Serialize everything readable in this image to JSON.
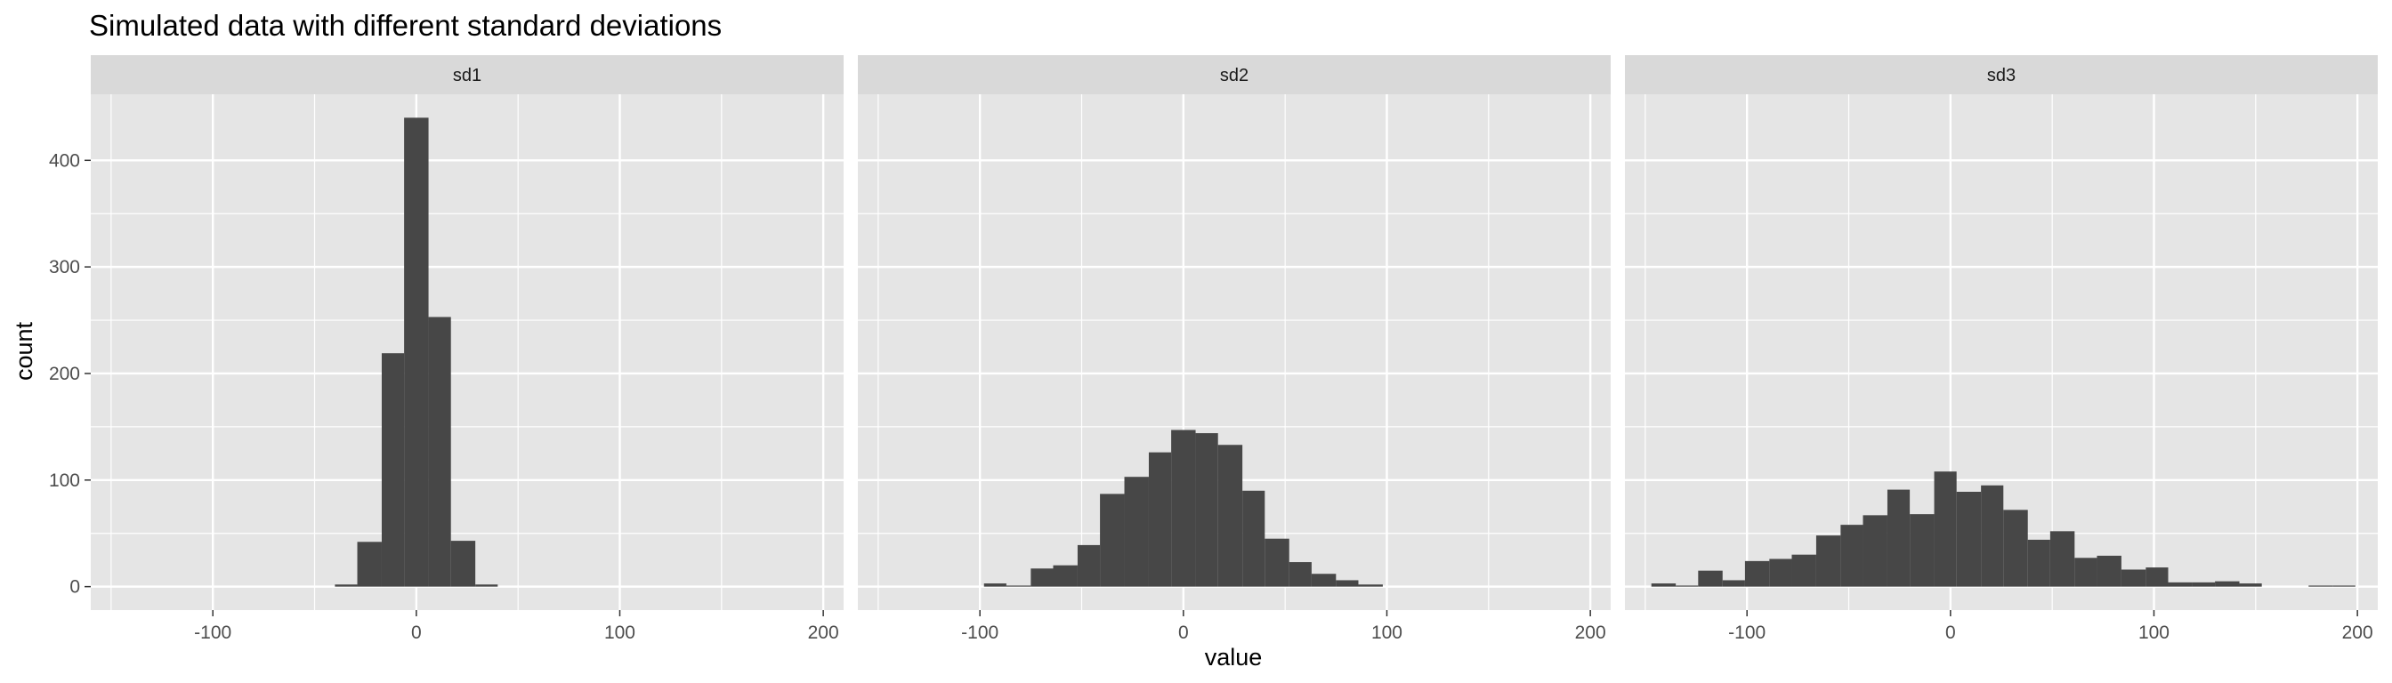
{
  "chart_data": {
    "type": "bar",
    "title": "Simulated data with different standard deviations",
    "xlabel": "value",
    "ylabel": "count",
    "xlim": [
      -160,
      210
    ],
    "ylim": [
      -22,
      462
    ],
    "x_ticks": [
      -100,
      0,
      100,
      200
    ],
    "x_tick_labels": [
      "-100",
      "0",
      "100",
      "200"
    ],
    "y_ticks": [
      0,
      100,
      200,
      300,
      400
    ],
    "y_tick_labels": [
      "0",
      "100",
      "200",
      "300",
      "400"
    ],
    "grid": true,
    "legend": "none",
    "bar_color": "#474747",
    "panel_background": "#e5e5e5",
    "strip_background": "#d9d9d9",
    "grid_color": "#ffffff",
    "panels": [
      {
        "label": "sd1",
        "bins": [
          {
            "x0": -40,
            "x1": -29,
            "count": 2
          },
          {
            "x0": -29,
            "x1": -17,
            "count": 42
          },
          {
            "x0": -17,
            "x1": -6,
            "count": 219
          },
          {
            "x0": -6,
            "x1": 6,
            "count": 440
          },
          {
            "x0": 6,
            "x1": 17,
            "count": 253
          },
          {
            "x0": 17,
            "x1": 29,
            "count": 43
          },
          {
            "x0": 29,
            "x1": 40,
            "count": 2
          }
        ]
      },
      {
        "label": "sd2",
        "bins": [
          {
            "x0": -98,
            "x1": -87,
            "count": 3
          },
          {
            "x0": -87,
            "x1": -75,
            "count": 1
          },
          {
            "x0": -75,
            "x1": -64,
            "count": 17
          },
          {
            "x0": -64,
            "x1": -52,
            "count": 20
          },
          {
            "x0": -52,
            "x1": -41,
            "count": 39
          },
          {
            "x0": -41,
            "x1": -29,
            "count": 87
          },
          {
            "x0": -29,
            "x1": -17,
            "count": 103
          },
          {
            "x0": -17,
            "x1": -6,
            "count": 126
          },
          {
            "x0": -6,
            "x1": 6,
            "count": 147
          },
          {
            "x0": 6,
            "x1": 17,
            "count": 144
          },
          {
            "x0": 17,
            "x1": 29,
            "count": 133
          },
          {
            "x0": 29,
            "x1": 40,
            "count": 90
          },
          {
            "x0": 40,
            "x1": 52,
            "count": 45
          },
          {
            "x0": 52,
            "x1": 63,
            "count": 23
          },
          {
            "x0": 63,
            "x1": 75,
            "count": 12
          },
          {
            "x0": 75,
            "x1": 86,
            "count": 6
          },
          {
            "x0": 86,
            "x1": 98,
            "count": 2
          }
        ]
      },
      {
        "label": "sd3",
        "bins": [
          {
            "x0": -147,
            "x1": -135,
            "count": 3
          },
          {
            "x0": -135,
            "x1": -124,
            "count": 1
          },
          {
            "x0": -124,
            "x1": -112,
            "count": 15
          },
          {
            "x0": -112,
            "x1": -101,
            "count": 6
          },
          {
            "x0": -101,
            "x1": -89,
            "count": 24
          },
          {
            "x0": -89,
            "x1": -78,
            "count": 26
          },
          {
            "x0": -78,
            "x1": -66,
            "count": 30
          },
          {
            "x0": -66,
            "x1": -54,
            "count": 48
          },
          {
            "x0": -54,
            "x1": -43,
            "count": 58
          },
          {
            "x0": -43,
            "x1": -31,
            "count": 67
          },
          {
            "x0": -31,
            "x1": -20,
            "count": 91
          },
          {
            "x0": -20,
            "x1": -8,
            "count": 68
          },
          {
            "x0": -8,
            "x1": 3,
            "count": 108
          },
          {
            "x0": 3,
            "x1": 15,
            "count": 89
          },
          {
            "x0": 15,
            "x1": 26,
            "count": 95
          },
          {
            "x0": 26,
            "x1": 38,
            "count": 72
          },
          {
            "x0": 38,
            "x1": 49,
            "count": 44
          },
          {
            "x0": 49,
            "x1": 61,
            "count": 52
          },
          {
            "x0": 61,
            "x1": 72,
            "count": 27
          },
          {
            "x0": 72,
            "x1": 84,
            "count": 29
          },
          {
            "x0": 84,
            "x1": 96,
            "count": 16
          },
          {
            "x0": 96,
            "x1": 107,
            "count": 18
          },
          {
            "x0": 107,
            "x1": 119,
            "count": 4
          },
          {
            "x0": 119,
            "x1": 130,
            "count": 4
          },
          {
            "x0": 130,
            "x1": 142,
            "count": 5
          },
          {
            "x0": 142,
            "x1": 153,
            "count": 3
          },
          {
            "x0": 153,
            "x1": 165,
            "count": 0
          },
          {
            "x0": 165,
            "x1": 176,
            "count": 0
          },
          {
            "x0": 176,
            "x1": 188,
            "count": 1
          },
          {
            "x0": 188,
            "x1": 199,
            "count": 1
          }
        ]
      }
    ]
  }
}
